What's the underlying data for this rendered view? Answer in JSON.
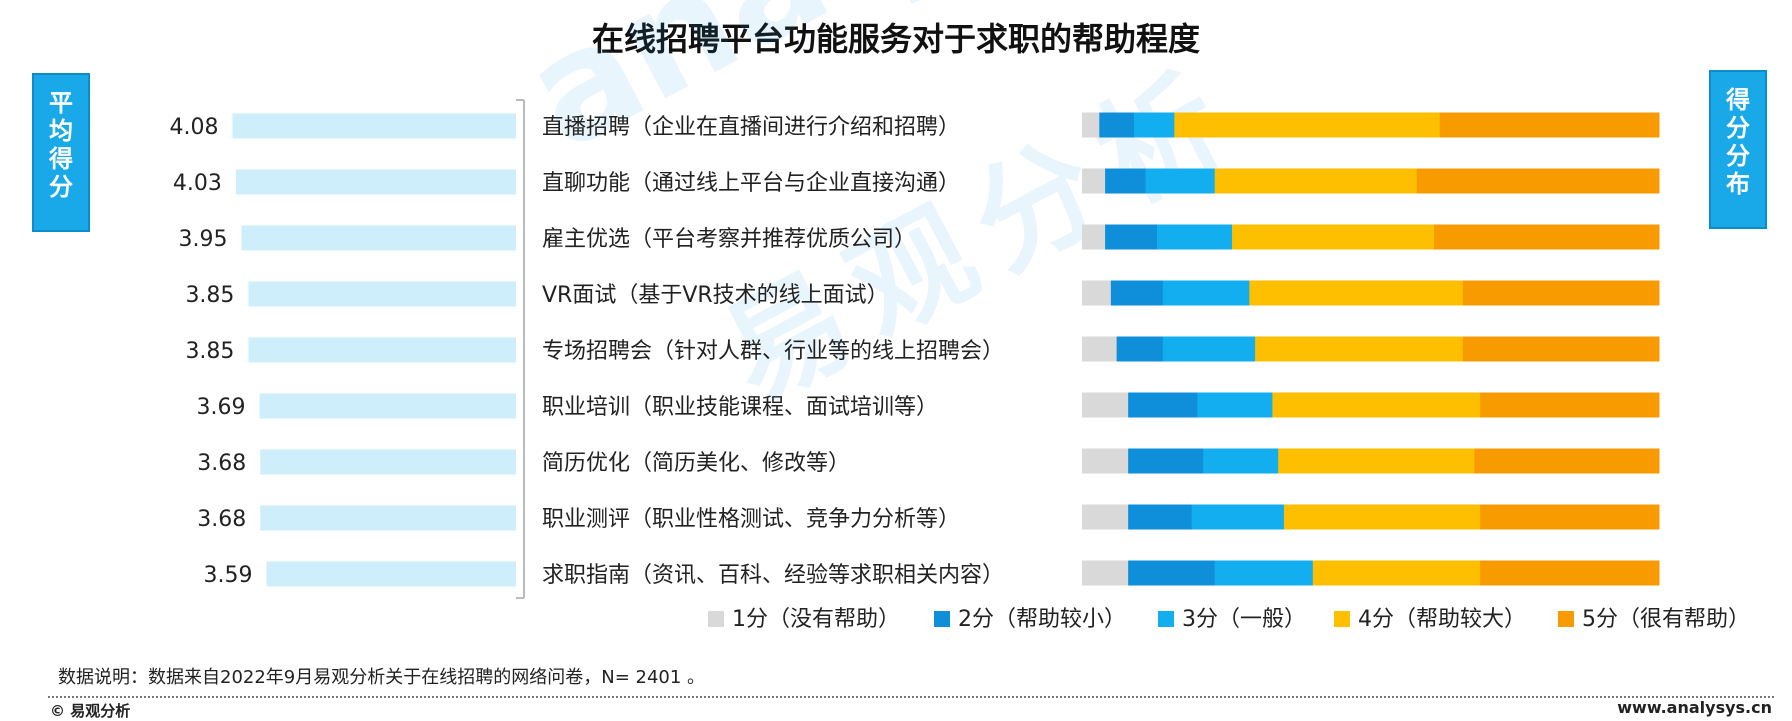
{
  "title": "在线招聘平台功能服务对于求职的帮助程度",
  "left_label": [
    "平",
    "均",
    "得",
    "分"
  ],
  "right_label": [
    "得",
    "分",
    "分",
    "布"
  ],
  "watermark": "analysys",
  "watermark_cn": "易观分析",
  "note": "数据说明：数据来自2022年9月易观分析关于在线招聘的网络问卷，N= 2401 。",
  "footer": {
    "copyright": "© 易观分析",
    "url": "www.analysys.cn"
  },
  "colors": {
    "avg_bar": "#cdeefa",
    "s1": "#d9d9d9",
    "s2": "#0f8fd9",
    "s3": "#12aeef",
    "s4": "#fdbf00",
    "s5": "#f89b00",
    "bracket": "#bbbbbb"
  },
  "chart_data": {
    "type": "bar",
    "categories": [
      "直播招聘（企业在直播间进行介绍和招聘）",
      "直聊功能（通过线上平台与企业直接沟通）",
      "雇主优选（平台考察并推荐优质公司）",
      "VR面试（基于VR技术的线上面试）",
      "专场招聘会（针对人群、行业等的线上招聘会）",
      "职业培训（职业技能课程、面试培训等）",
      "简历优化（简历美化、修改等）",
      "职业测评（职业性格测试、竞争力分析等）",
      "求职指南（资讯、百科、经验等求职相关内容）"
    ],
    "average_scores": [
      4.08,
      4.03,
      3.95,
      3.85,
      3.85,
      3.69,
      3.68,
      3.68,
      3.59
    ],
    "distribution": {
      "stacked": true,
      "unit": "%",
      "series": [
        {
          "name": "1分（没有帮助）",
          "values": [
            3,
            4,
            4,
            5,
            6,
            8,
            8,
            8,
            8
          ]
        },
        {
          "name": "2分（帮助较小）",
          "values": [
            6,
            7,
            9,
            9,
            8,
            12,
            13,
            11,
            15
          ]
        },
        {
          "name": "3分（一般）",
          "values": [
            7,
            12,
            13,
            15,
            16,
            13,
            13,
            16,
            17
          ]
        },
        {
          "name": "4分（帮助较大）",
          "values": [
            46,
            35,
            35,
            37,
            36,
            36,
            34,
            34,
            29
          ]
        },
        {
          "name": "5分（很有帮助）",
          "values": [
            38,
            42,
            39,
            34,
            34,
            31,
            32,
            31,
            31
          ]
        }
      ]
    },
    "legend_position": "bottom-right"
  }
}
